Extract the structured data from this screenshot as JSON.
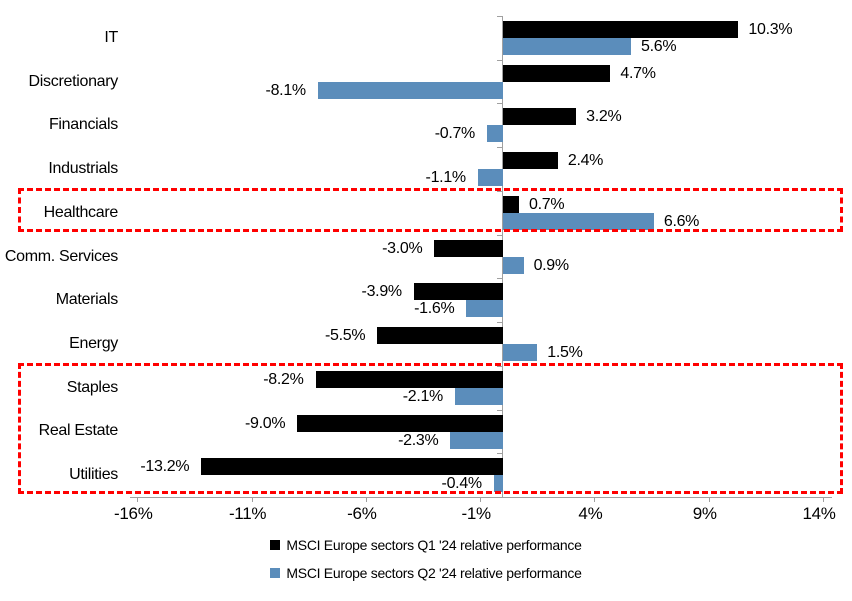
{
  "chart_data": {
    "type": "bar",
    "orientation": "horizontal",
    "title": "",
    "xlabel": "",
    "ylabel": "",
    "grid": false,
    "legend_position": "bottom",
    "categories": [
      "IT",
      "Discretionary",
      "Financials",
      "Industrials",
      "Healthcare",
      "Comm. Services",
      "Materials",
      "Energy",
      "Staples",
      "Real Estate",
      "Utilities"
    ],
    "series": [
      {
        "name": "MSCI Europe sectors Q1 '24 relative performance",
        "color": "#000000",
        "values": [
          10.3,
          4.7,
          3.2,
          2.4,
          0.7,
          -3.0,
          -3.9,
          -5.5,
          -8.2,
          -9.0,
          -13.2
        ],
        "labels": [
          "10.3%",
          "4.7%",
          "3.2%",
          "2.4%",
          "0.7%",
          "-3.0%",
          "-3.9%",
          "-5.5%",
          "-8.2%",
          "-9.0%",
          "-13.2%"
        ]
      },
      {
        "name": "MSCI Europe sectors Q2 '24 relative performance",
        "color": "#5b8dbb",
        "values": [
          5.6,
          -8.1,
          -0.7,
          -1.1,
          6.6,
          0.9,
          -1.6,
          1.5,
          -2.1,
          -2.3,
          -0.4
        ],
        "labels": [
          "5.6%",
          "-8.1%",
          "-0.7%",
          "-1.1%",
          "6.6%",
          "0.9%",
          "-1.6%",
          "1.5%",
          "-2.1%",
          "-2.3%",
          "-0.4%"
        ]
      }
    ],
    "x_axis": {
      "tick_values": [
        -16,
        -11,
        -6,
        -1,
        4,
        9,
        14
      ],
      "tick_labels": [
        "-16%",
        "-11%",
        "-6%",
        "-1%",
        "4%",
        "9%",
        "14%"
      ],
      "xlim": [
        -16.3,
        14.4
      ]
    },
    "highlights": [
      {
        "type": "dashed-box",
        "color": "#ff0000",
        "categories": [
          "Healthcare"
        ]
      },
      {
        "type": "dashed-box",
        "color": "#ff0000",
        "categories": [
          "Staples",
          "Real Estate",
          "Utilities"
        ]
      }
    ],
    "colors": {
      "axis": "#a0a0a0",
      "data_label": "#000000",
      "background": "#ffffff"
    }
  }
}
